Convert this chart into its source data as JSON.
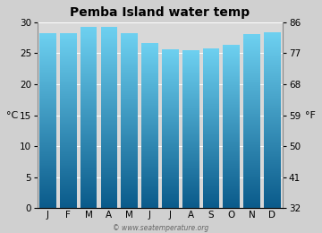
{
  "title": "Pemba Island water temp",
  "months": [
    "J",
    "F",
    "M",
    "A",
    "M",
    "J",
    "J",
    "A",
    "S",
    "O",
    "N",
    "D"
  ],
  "values_c": [
    28.3,
    28.3,
    29.2,
    29.2,
    28.2,
    26.6,
    25.7,
    25.5,
    25.8,
    26.4,
    28.1,
    28.4
  ],
  "ylim_c": [
    0,
    30
  ],
  "yticks_c": [
    0,
    5,
    10,
    15,
    20,
    25,
    30
  ],
  "yticks_f": [
    32,
    41,
    50,
    59,
    68,
    77,
    86
  ],
  "ylabel_left": "°C",
  "ylabel_right": "°F",
  "bar_color_top": "#6dd0f0",
  "bar_color_bottom": "#0a5a8a",
  "plot_bg_color": "#d8d8d8",
  "fig_bg_color": "#d0d0d0",
  "watermark": "© www.seatemperature.org",
  "title_fontsize": 10,
  "axis_fontsize": 7.5,
  "label_fontsize": 8,
  "bar_width": 0.82
}
